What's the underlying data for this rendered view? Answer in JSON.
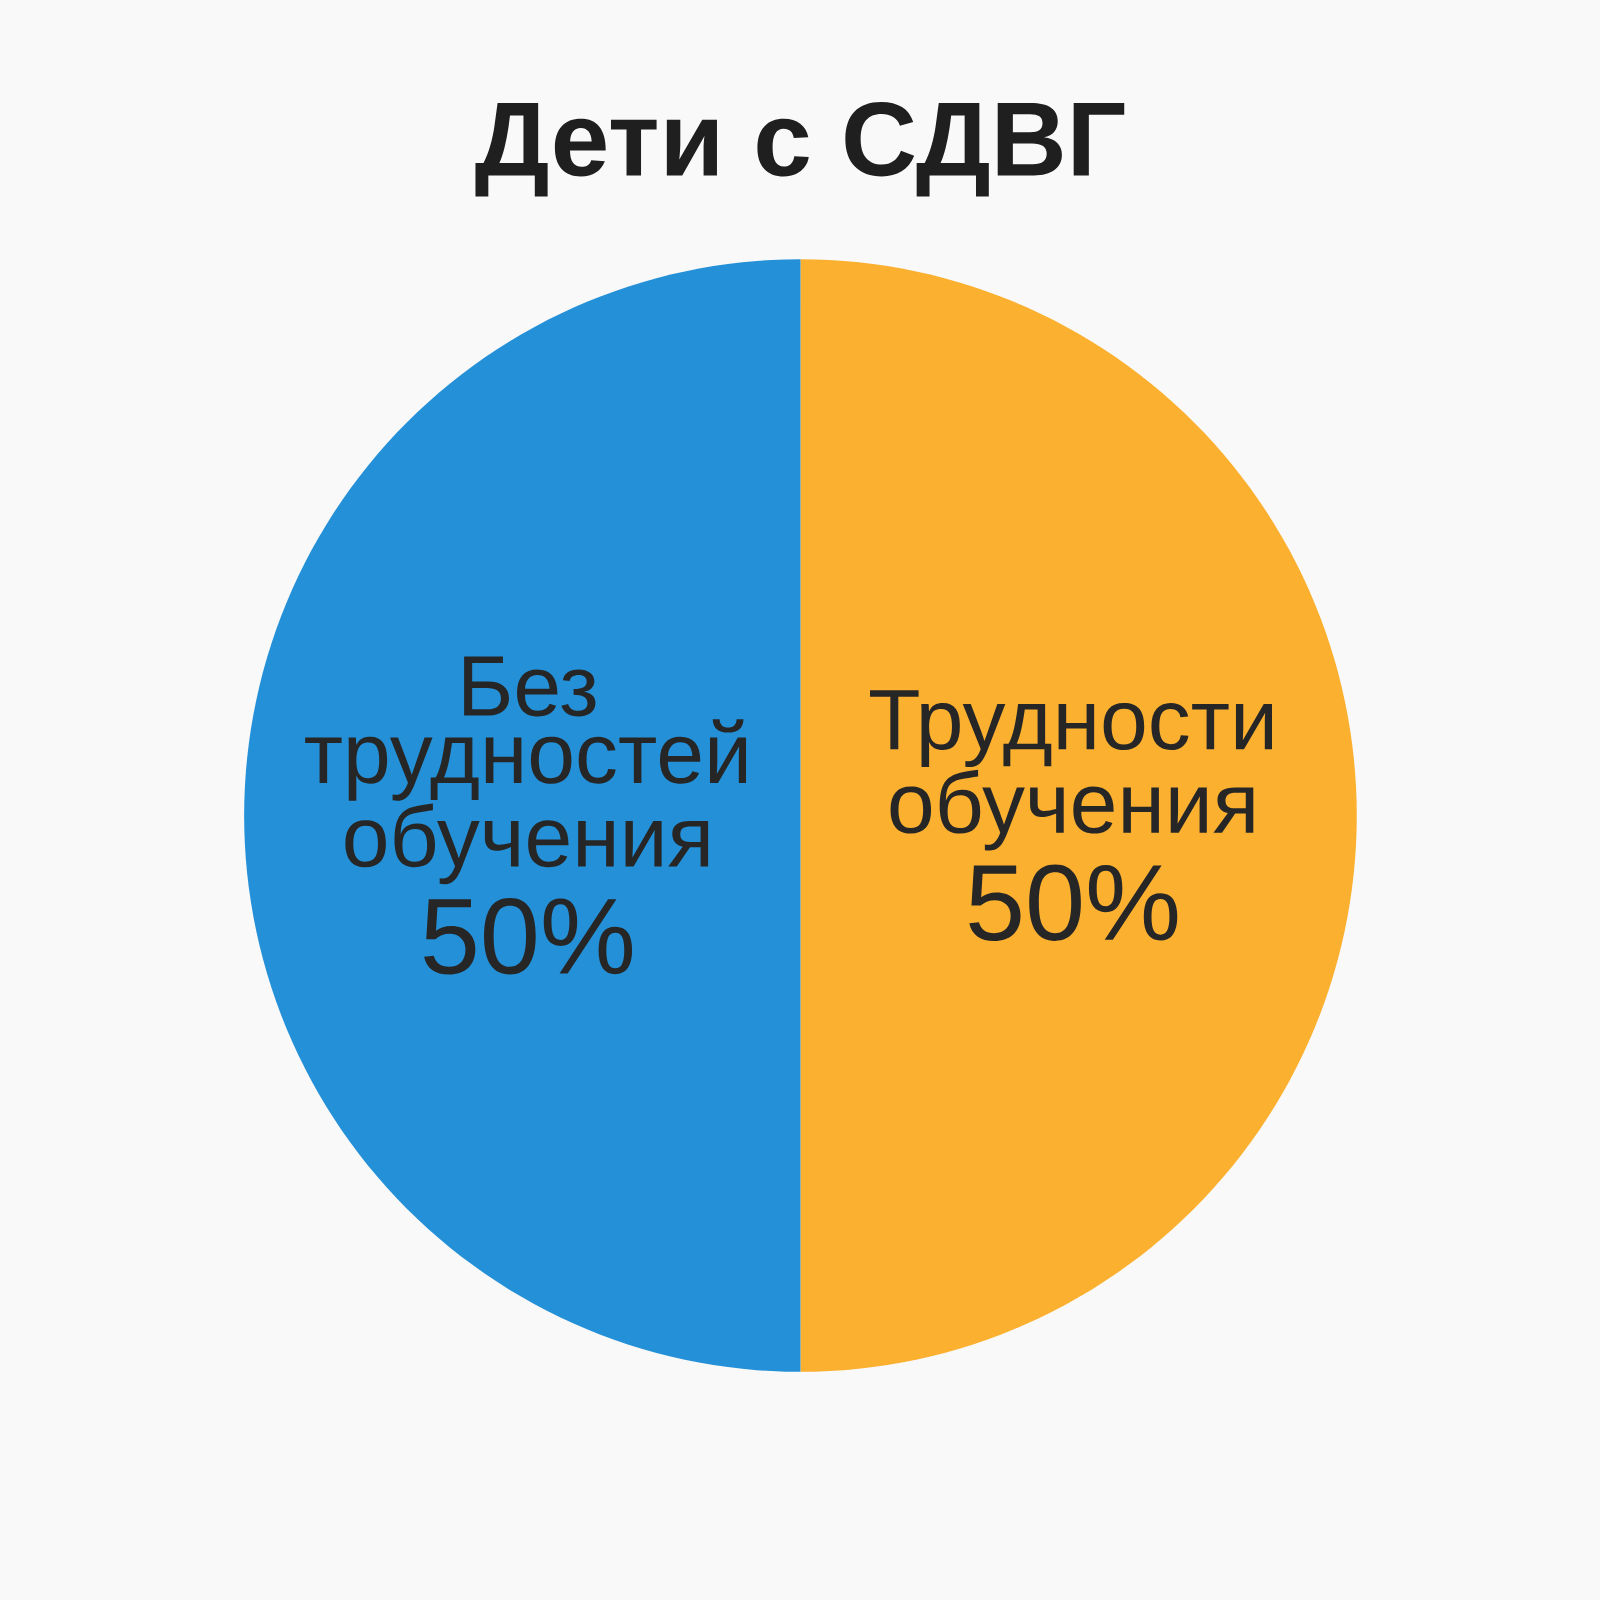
{
  "chart_data": {
    "type": "pie",
    "title": "Дети с СДВГ",
    "categories": [
      "Трудности обучения",
      "Без трудностей обучения"
    ],
    "values": [
      50,
      50
    ],
    "colors": [
      "#fbb030",
      "#2490d8"
    ],
    "value_labels": [
      "50%",
      "50%"
    ]
  }
}
